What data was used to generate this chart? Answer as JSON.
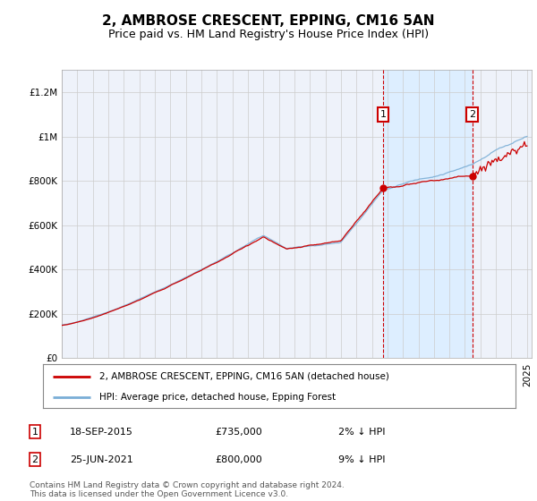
{
  "title": "2, AMBROSE CRESCENT, EPPING, CM16 5AN",
  "subtitle": "Price paid vs. HM Land Registry's House Price Index (HPI)",
  "ylim": [
    0,
    1300000
  ],
  "yticks": [
    0,
    200000,
    400000,
    600000,
    800000,
    1000000,
    1200000
  ],
  "ytick_labels": [
    "£0",
    "£200K",
    "£400K",
    "£600K",
    "£800K",
    "£1M",
    "£1.2M"
  ],
  "sale1_date": 2015.72,
  "sale1_price": 735000,
  "sale2_date": 2021.48,
  "sale2_price": 800000,
  "sale_color": "#cc0000",
  "hpi_color": "#7aaed6",
  "shaded_color": "#ddeeff",
  "legend_line1": "2, AMBROSE CRESCENT, EPPING, CM16 5AN (detached house)",
  "legend_line2": "HPI: Average price, detached house, Epping Forest",
  "annotation1_date": "18-SEP-2015",
  "annotation1_price": "£735,000",
  "annotation1_note": "2% ↓ HPI",
  "annotation2_date": "25-JUN-2021",
  "annotation2_price": "£800,000",
  "annotation2_note": "9% ↓ HPI",
  "footer": "Contains HM Land Registry data © Crown copyright and database right 2024.\nThis data is licensed under the Open Government Licence v3.0.",
  "background_color": "#ffffff",
  "plot_bg_color": "#eef2fa",
  "grid_color": "#cccccc",
  "title_fontsize": 11,
  "subtitle_fontsize": 9,
  "tick_fontsize": 7.5
}
